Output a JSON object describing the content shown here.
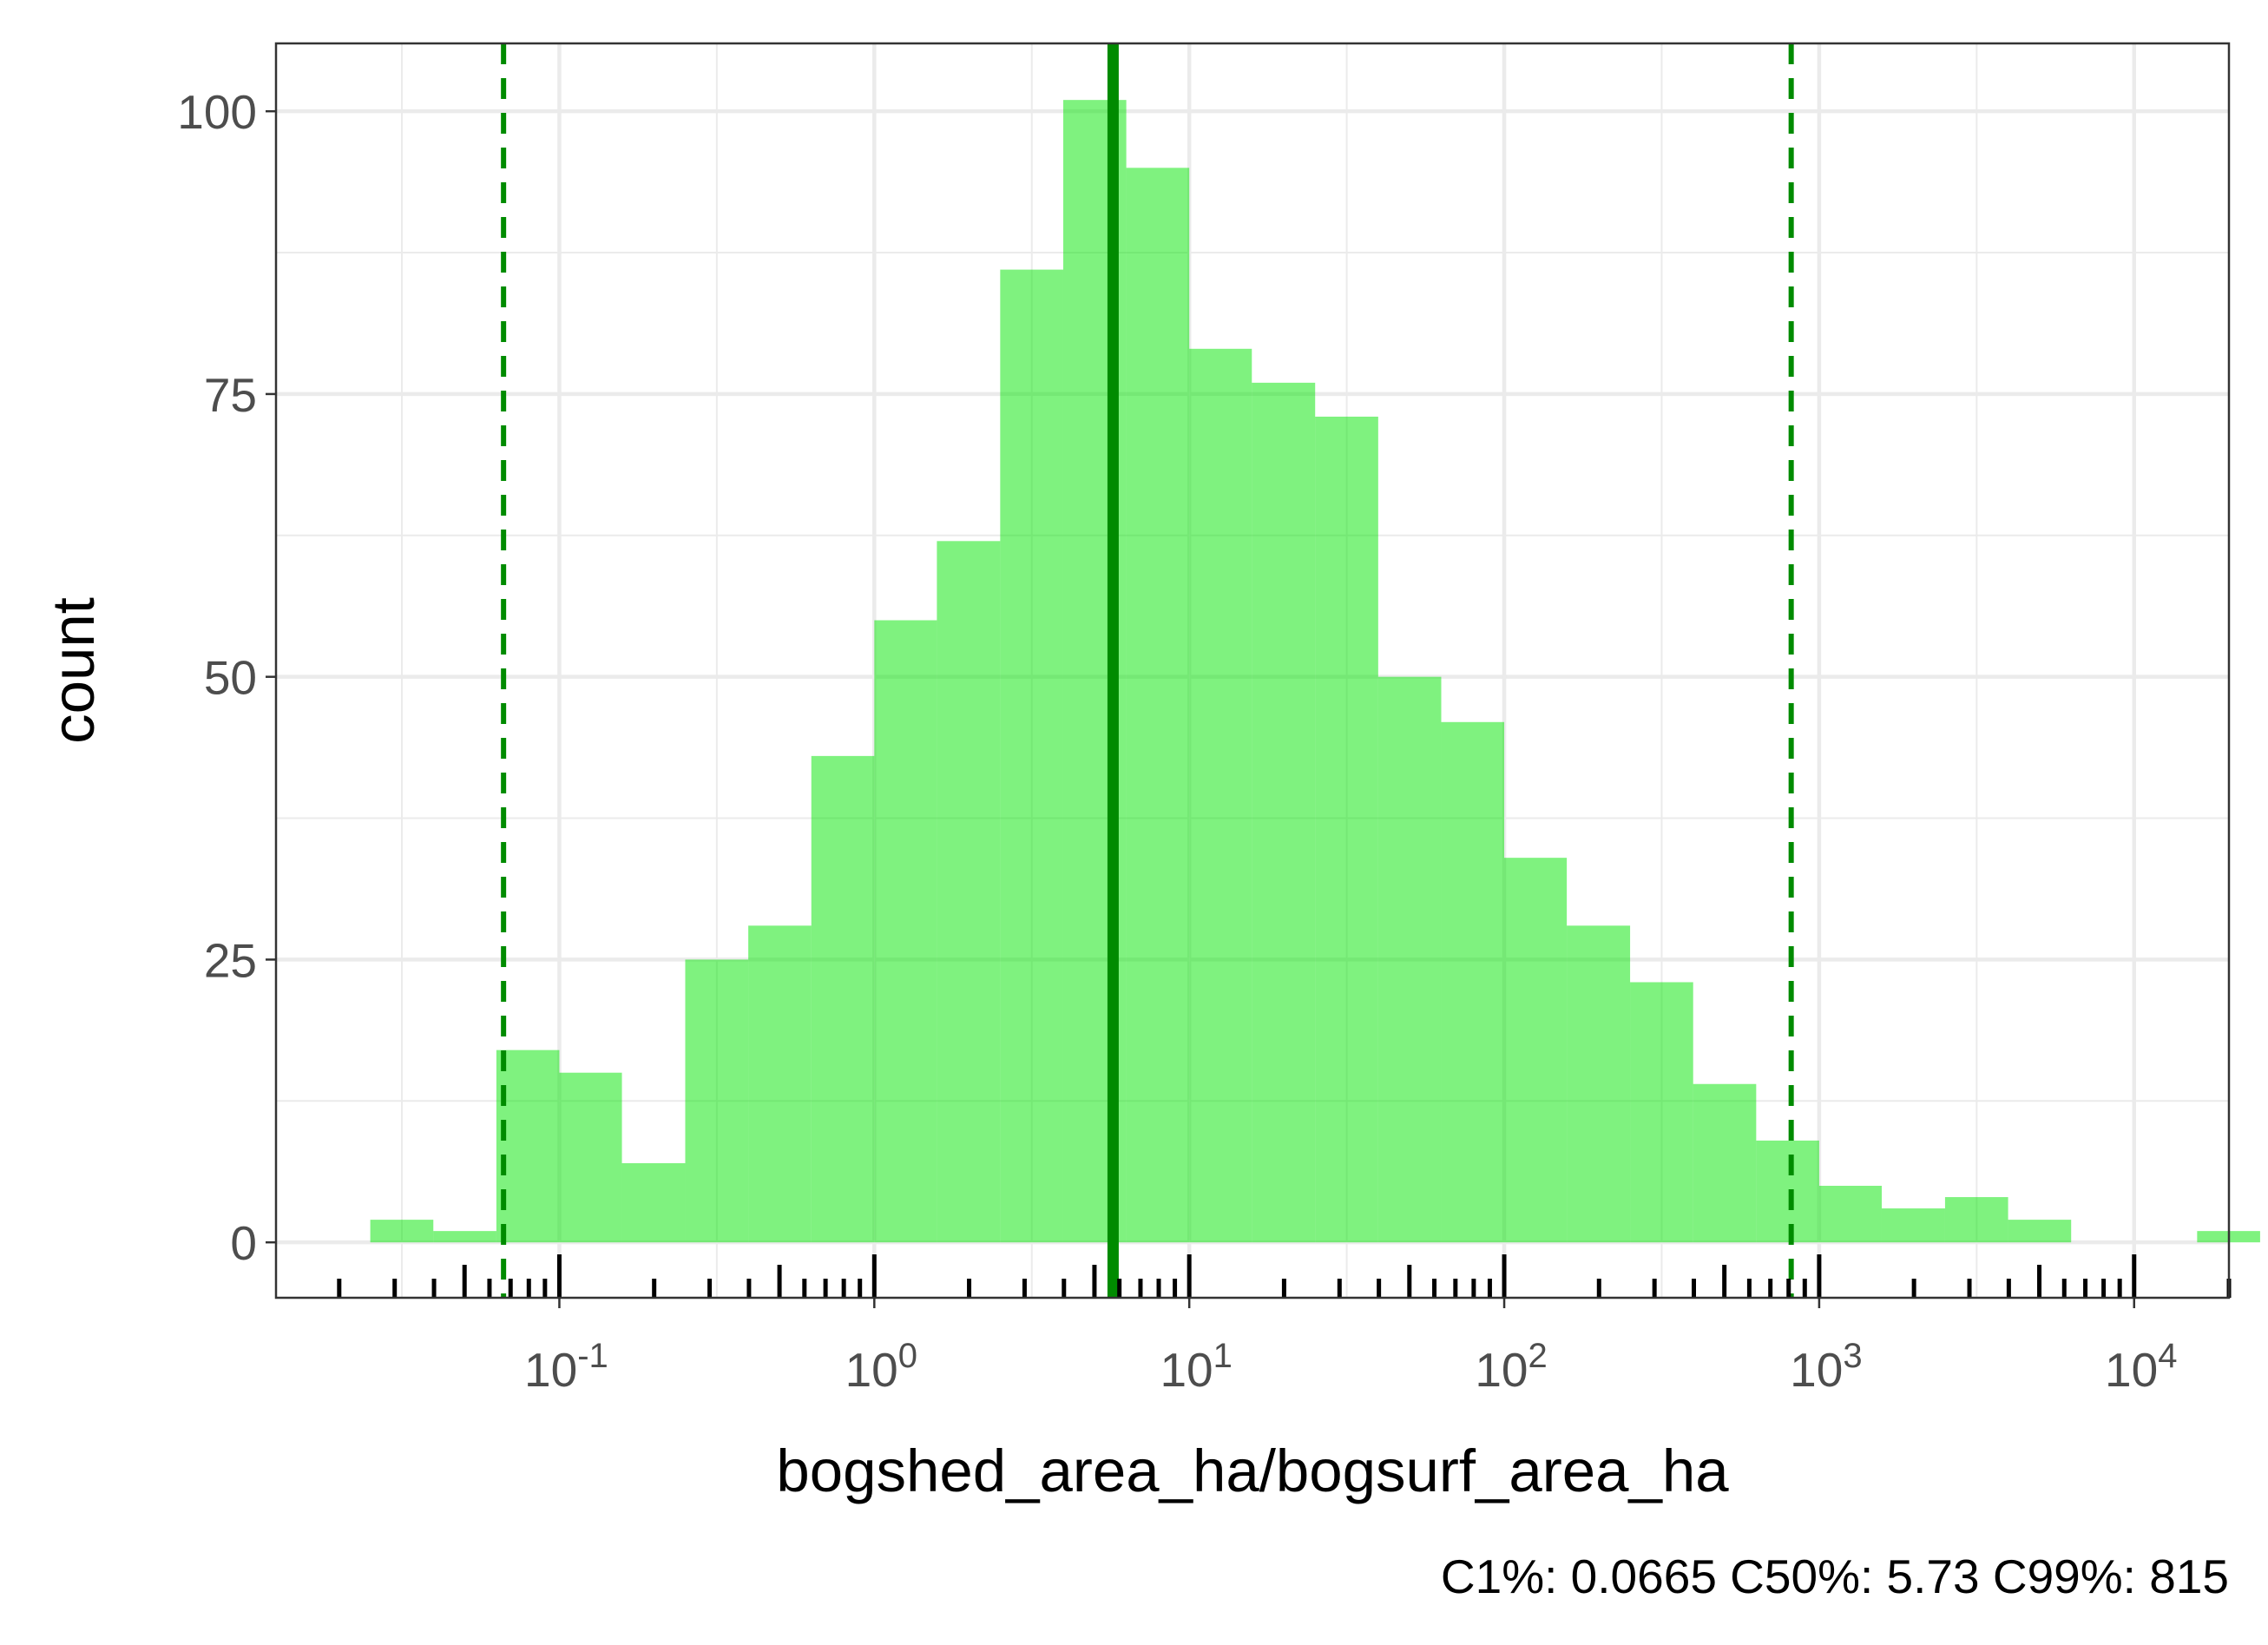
{
  "chart_data": {
    "type": "bar",
    "title": "",
    "xlabel": "bogshed_area_ha/bogsurf_area_ha",
    "ylabel": "count",
    "caption": "C1%: 0.0665 C50%: 5.73 C99%: 815",
    "x_scale": "log10",
    "x_range": [
      0.0126,
      20000
    ],
    "ylim": [
      -4.9,
      106
    ],
    "grid": true,
    "bar_fill": "#00e600",
    "bar_alpha": 0.5,
    "line_color": "#008b00",
    "x_ticks": [
      {
        "base": "10",
        "exp": "-1",
        "value": 0.1
      },
      {
        "base": "10",
        "exp": "0",
        "value": 1
      },
      {
        "base": "10",
        "exp": "1",
        "value": 10
      },
      {
        "base": "10",
        "exp": "2",
        "value": 100
      },
      {
        "base": "10",
        "exp": "3",
        "value": 1000
      },
      {
        "base": "10",
        "exp": "4",
        "value": 10000
      }
    ],
    "y_ticks": [
      "0",
      "25",
      "50",
      "75",
      "100"
    ],
    "bins": [
      {
        "x0": 0.0251,
        "x1": 0.0398,
        "count": 2
      },
      {
        "x0": 0.0398,
        "x1": 0.0631,
        "count": 1
      },
      {
        "x0": 0.0631,
        "x1": 0.1,
        "count": 17
      },
      {
        "x0": 0.1,
        "x1": 0.158,
        "count": 15
      },
      {
        "x0": 0.158,
        "x1": 0.251,
        "count": 7
      },
      {
        "x0": 0.251,
        "x1": 0.398,
        "count": 25
      },
      {
        "x0": 0.398,
        "x1": 0.631,
        "count": 28
      },
      {
        "x0": 0.631,
        "x1": 1.0,
        "count": 43
      },
      {
        "x0": 1.0,
        "x1": 1.58,
        "count": 55
      },
      {
        "x0": 1.58,
        "x1": 2.51,
        "count": 62
      },
      {
        "x0": 2.51,
        "x1": 3.98,
        "count": 86
      },
      {
        "x0": 3.98,
        "x1": 6.31,
        "count": 101
      },
      {
        "x0": 6.31,
        "x1": 10.0,
        "count": 95
      },
      {
        "x0": 10.0,
        "x1": 15.8,
        "count": 79
      },
      {
        "x0": 15.8,
        "x1": 25.1,
        "count": 76
      },
      {
        "x0": 25.1,
        "x1": 39.8,
        "count": 73
      },
      {
        "x0": 39.8,
        "x1": 63.1,
        "count": 50
      },
      {
        "x0": 63.1,
        "x1": 100,
        "count": 46
      },
      {
        "x0": 100,
        "x1": 158,
        "count": 34
      },
      {
        "x0": 158,
        "x1": 251,
        "count": 28
      },
      {
        "x0": 251,
        "x1": 398,
        "count": 23
      },
      {
        "x0": 398,
        "x1": 631,
        "count": 14
      },
      {
        "x0": 631,
        "x1": 1000,
        "count": 9
      },
      {
        "x0": 1000,
        "x1": 1580,
        "count": 5
      },
      {
        "x0": 1580,
        "x1": 2510,
        "count": 3
      },
      {
        "x0": 2510,
        "x1": 3980,
        "count": 4
      },
      {
        "x0": 3980,
        "x1": 6310,
        "count": 2
      },
      {
        "x0": 15850,
        "x1": 25120,
        "count": 1
      }
    ],
    "vlines": [
      {
        "name": "C1%",
        "value": 0.0665,
        "style": "dashed"
      },
      {
        "name": "C50%",
        "value": 5.73,
        "style": "solid"
      },
      {
        "name": "C99%",
        "value": 815,
        "style": "dashed"
      }
    ],
    "rug_ticks": [
      0.02,
      0.03,
      0.04,
      0.05,
      0.06,
      0.07,
      0.08,
      0.09,
      0.1,
      0.2,
      0.3,
      0.4,
      0.5,
      0.6,
      0.7,
      0.8,
      0.9,
      1,
      2,
      3,
      4,
      5,
      6,
      7,
      8,
      9,
      10,
      20,
      30,
      40,
      50,
      60,
      70,
      80,
      90,
      100,
      200,
      300,
      400,
      500,
      600,
      700,
      800,
      900,
      1000,
      2000,
      3000,
      4000,
      5000,
      6000,
      7000,
      8000,
      9000,
      10000,
      20000
    ]
  }
}
